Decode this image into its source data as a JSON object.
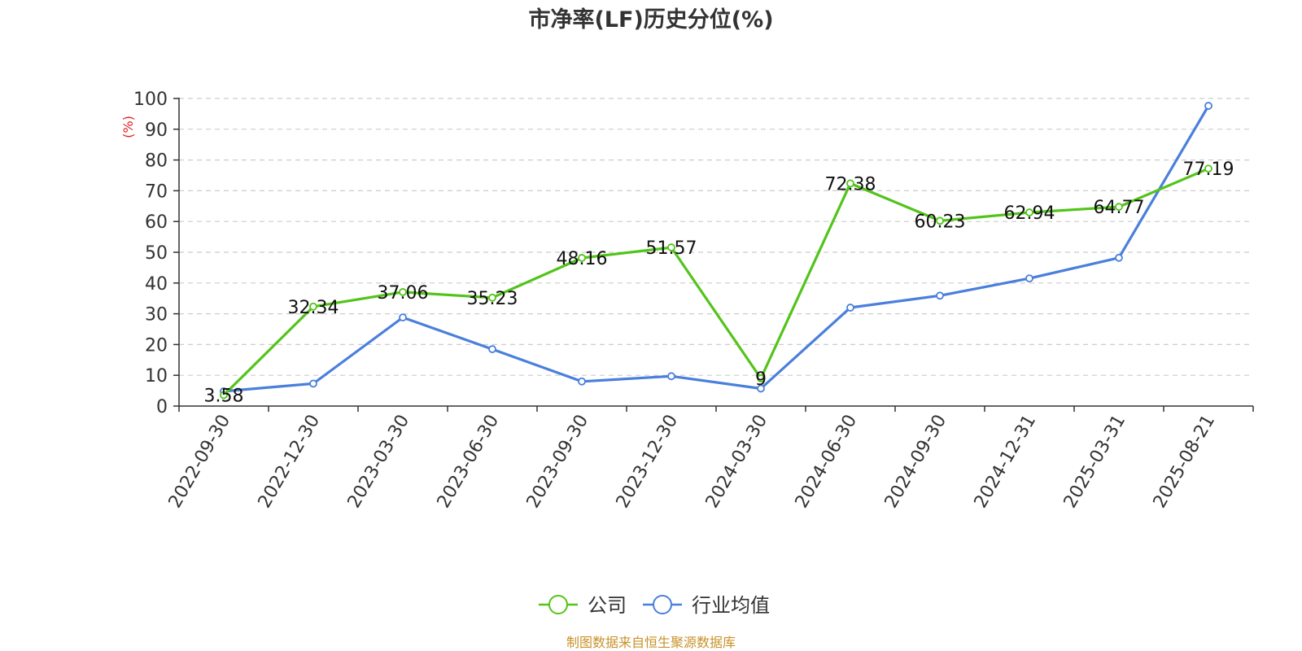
{
  "chart_data": {
    "type": "line",
    "title": "市净率(LF)历史分位(%)",
    "ylabel": "(%)",
    "xlabel": "",
    "ylim": [
      0,
      100
    ],
    "yticks": [
      0,
      10,
      20,
      30,
      40,
      50,
      60,
      70,
      80,
      90,
      100
    ],
    "grid": "horizontal-dashed",
    "legend_position": "bottom",
    "categories": [
      "2022-09-30",
      "2022-12-30",
      "2023-03-30",
      "2023-06-30",
      "2023-09-30",
      "2023-12-30",
      "2024-03-30",
      "2024-06-30",
      "2024-09-30",
      "2024-12-31",
      "2025-03-31",
      "2025-08-21"
    ],
    "series": [
      {
        "name": "公司",
        "color": "#52c41a",
        "show_labels": true,
        "values": [
          3.58,
          32.34,
          37.06,
          35.23,
          48.16,
          51.57,
          9,
          72.38,
          60.23,
          62.94,
          64.77,
          77.19
        ]
      },
      {
        "name": "行业均值",
        "color": "#4a7fdc",
        "show_labels": false,
        "values": [
          4.8,
          7.3,
          28.8,
          18.5,
          8.0,
          9.7,
          5.7,
          32.0,
          35.9,
          41.5,
          48.2,
          97.6
        ]
      }
    ]
  },
  "source_note": "制图数据来自恒生聚源数据库"
}
